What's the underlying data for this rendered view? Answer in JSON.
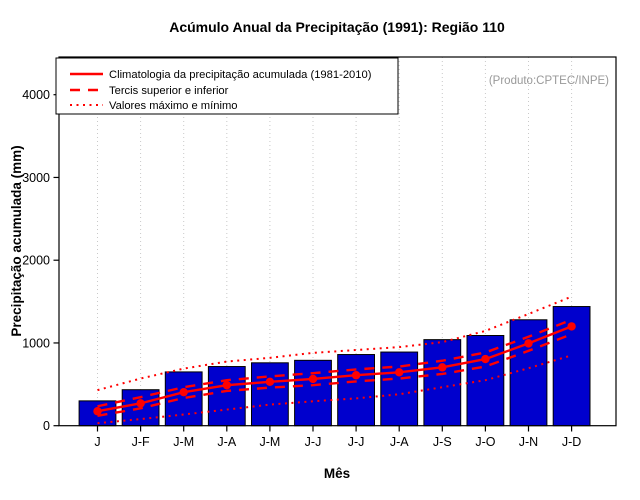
{
  "chart_data": {
    "type": "bar",
    "title": "Acúmulo Anual da Precipitação (1991): Região 110",
    "xlabel": "Mês",
    "ylabel": "Precipitação acumulada (mm)",
    "annotation": "(Produto:CPTEC/INPE)",
    "categories": [
      "J",
      "J-F",
      "J-M",
      "J-A",
      "J-M",
      "J-J",
      "J-J",
      "J-A",
      "J-S",
      "J-O",
      "J-N",
      "J-D"
    ],
    "bar_values": [
      300,
      435,
      650,
      715,
      760,
      790,
      860,
      890,
      1040,
      1090,
      1280,
      1440
    ],
    "lines": [
      {
        "id": "climatologia",
        "style": "solid",
        "marker": true,
        "values": [
          175,
          270,
          405,
          490,
          530,
          565,
          610,
          645,
          705,
          805,
          995,
          1200
        ]
      },
      {
        "id": "tercil-superior",
        "style": "dashed",
        "marker": false,
        "values": [
          235,
          345,
          465,
          550,
          595,
          635,
          680,
          715,
          785,
          885,
          1075,
          1280
        ]
      },
      {
        "id": "tercil-inferior",
        "style": "dashed",
        "marker": false,
        "values": [
          120,
          210,
          335,
          420,
          460,
          490,
          535,
          570,
          625,
          715,
          905,
          1105
        ]
      },
      {
        "id": "maximo",
        "style": "dotted",
        "marker": false,
        "values": [
          430,
          570,
          690,
          775,
          820,
          880,
          915,
          950,
          1010,
          1145,
          1350,
          1560
        ]
      },
      {
        "id": "minimo",
        "style": "dotted",
        "marker": false,
        "values": [
          30,
          80,
          135,
          195,
          255,
          295,
          330,
          380,
          465,
          550,
          695,
          850
        ]
      }
    ],
    "legend": [
      {
        "label": "Climatologia da precipitação acumulada (1981-2010)",
        "style": "solid"
      },
      {
        "label": "Tercis superior e inferior",
        "style": "dashed"
      },
      {
        "label": "Valores máximo e mínimo",
        "style": "dotted"
      }
    ],
    "legend_position": "top-left",
    "yticks": [
      0,
      1000,
      2000,
      3000,
      4000
    ],
    "ylim": [
      0,
      4450
    ],
    "grid": "vertical-dotted",
    "colors": {
      "bar": "#0000CD",
      "bar_border": "#000000",
      "line": "#FF0000",
      "grid": "#C9C9C9",
      "annotation": "#999999"
    }
  }
}
